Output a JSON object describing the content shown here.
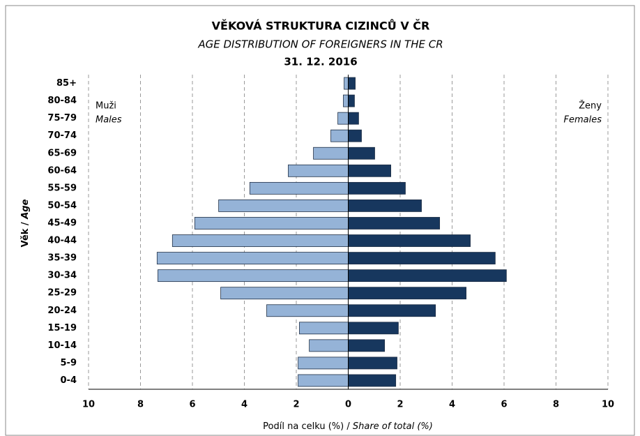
{
  "chart_data": {
    "type": "pyramid",
    "title": "VĚKOVÁ STRUKTURA CIZINCŮ V ČR",
    "subtitle": "AGE DISTRIBUTION OF FOREIGNERS IN THE CR",
    "date": "31. 12. 2016",
    "ylabel": [
      "Věk /",
      "Age"
    ],
    "xlabel": [
      "Podíl na celku (%) /",
      "Share of total (%)"
    ],
    "annotations": {
      "left": [
        "Muži",
        "Males"
      ],
      "right": [
        "Ženy",
        "Females"
      ]
    },
    "categories": [
      "0-4",
      "5-9",
      "10-14",
      "15-19",
      "20-24",
      "25-29",
      "30-34",
      "35-39",
      "40-44",
      "45-49",
      "50-54",
      "55-59",
      "60-64",
      "65-69",
      "70-74",
      "75-79",
      "80-84",
      "85+"
    ],
    "series": [
      {
        "name": "Males",
        "color": "#95b3d7",
        "values": [
          -1.93,
          -1.93,
          -1.5,
          -1.88,
          -3.14,
          -4.91,
          -7.33,
          -7.36,
          -6.77,
          -5.91,
          -4.99,
          -3.79,
          -2.31,
          -1.34,
          -0.67,
          -0.4,
          -0.19,
          -0.16
        ]
      },
      {
        "name": "Females",
        "color": "#17375e",
        "values": [
          1.83,
          1.88,
          1.4,
          1.93,
          3.36,
          4.54,
          6.09,
          5.66,
          4.7,
          3.52,
          2.82,
          2.2,
          1.64,
          1.02,
          0.51,
          0.4,
          0.24,
          0.27
        ]
      }
    ],
    "xlim": [
      -10,
      10
    ],
    "xticks": [
      {
        "value": -10,
        "label": "10"
      },
      {
        "value": -8,
        "label": "8"
      },
      {
        "value": -6,
        "label": "6"
      },
      {
        "value": -4,
        "label": "4"
      },
      {
        "value": -2,
        "label": "2"
      },
      0,
      2,
      4,
      6,
      8,
      10
    ],
    "grid": true
  }
}
